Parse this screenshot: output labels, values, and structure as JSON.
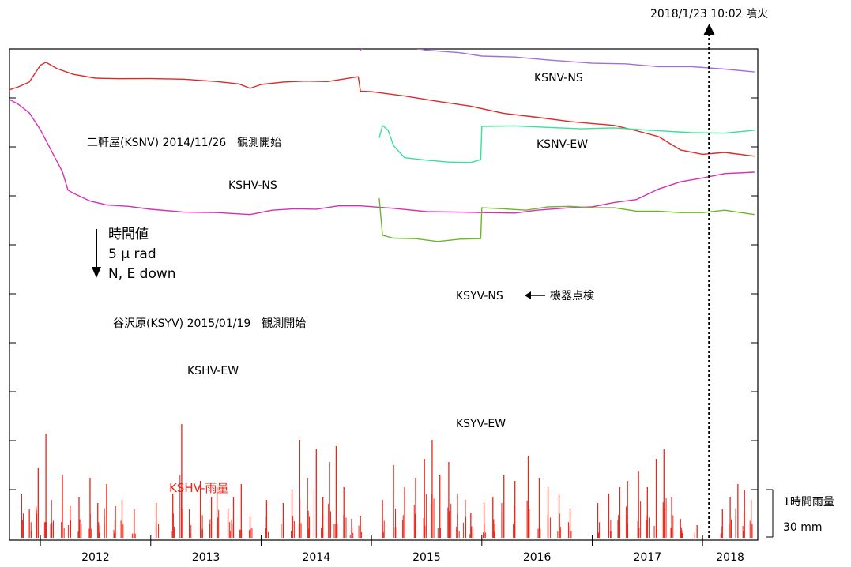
{
  "chart_data": {
    "type": "line",
    "x_unit": "year",
    "xlim": [
      2011.72,
      2018.5
    ],
    "x_tick_labels": [
      "2012",
      "2013",
      "2014",
      "2015",
      "2016",
      "2017",
      "2018"
    ],
    "year_boundaries": [
      2012,
      2013,
      2014,
      2015,
      2016,
      2017,
      2018
    ],
    "scale_bar": {
      "title": "時間値",
      "value": "5 μ rad",
      "direction": "N, E down"
    },
    "eruption": {
      "label": "2018/1/23 10:02 噴火",
      "x": 2018.06
    },
    "annotations": {
      "ksnv_start": "二軒屋(KSNV) 2014/11/26　観測開始",
      "ksyv_start": "谷沢原(KSYV) 2015/01/19　観測開始",
      "maintenance": "機器点検"
    },
    "rain_axis": {
      "title": "1時間雨量",
      "scale": "30 mm"
    },
    "series": [
      {
        "name": "KSNV-NS",
        "color": "#e060e0",
        "x": [
          2014.9,
          2015.0,
          2015.2,
          2015.5,
          2015.8,
          2016.0,
          2016.3,
          2016.6,
          2016.9,
          2017.2,
          2017.5,
          2017.8,
          2018.1,
          2018.47
        ],
        "y": [
          -0.8,
          1.2,
          3.6,
          6.0,
          7.6,
          8.6,
          9.8,
          10.7,
          11.5,
          12.1,
          12.7,
          13.3,
          14.1,
          15.4
        ]
      },
      {
        "name": "KSNV-EW",
        "color": "#a070d8",
        "x": [
          2014.9,
          2015.2,
          2015.5,
          2015.8,
          2016.0,
          2016.3,
          2016.6,
          2017.0,
          2017.3,
          2017.6,
          2017.9,
          2018.2,
          2018.47
        ],
        "y": [
          2.2,
          0.6,
          -0.4,
          -1.2,
          -1.7,
          -2.2,
          -2.6,
          -3.1,
          -3.5,
          -3.9,
          -4.2,
          -4.5,
          -4.9
        ]
      },
      {
        "name": "KSHV-NS",
        "color": "#e02828",
        "x": [
          2011.72,
          2011.8,
          2011.9,
          2012.0,
          2012.05,
          2012.15,
          2012.3,
          2012.5,
          2012.7,
          2013.0,
          2013.3,
          2013.6,
          2013.8,
          2013.9,
          2014.0,
          2014.2,
          2014.4,
          2014.6,
          2014.88,
          2014.9,
          2015.0,
          2015.3,
          2015.6,
          2015.9,
          2016.2,
          2016.5,
          2016.8,
          2017.0,
          2017.2,
          2017.4,
          2017.6,
          2017.8,
          2018.0,
          2018.2,
          2018.47
        ],
        "y": [
          -9.0,
          -8.2,
          -7.0,
          -3.8,
          -3.0,
          -4.6,
          -5.6,
          -6.2,
          -6.6,
          -6.4,
          -6.8,
          -7.1,
          -7.4,
          -8.6,
          -7.6,
          -7.4,
          -7.0,
          -6.9,
          -6.2,
          -9.0,
          -9.4,
          -10.1,
          -11.0,
          -12.3,
          -13.6,
          -14.7,
          -15.4,
          -15.6,
          -16.3,
          -17.2,
          -18.7,
          -21.3,
          -22.0,
          -21.9,
          -22.5
        ]
      },
      {
        "name": "KSYV-NS",
        "color": "#38e09a",
        "x": [
          2015.07,
          2015.1,
          2015.15,
          2015.2,
          2015.3,
          2015.5,
          2015.7,
          2015.9,
          2015.99,
          2016.0,
          2016.3,
          2016.6,
          2016.9,
          2017.2,
          2017.45,
          2017.6,
          2017.9,
          2018.2,
          2018.47
        ],
        "y": [
          -19.0,
          -16.2,
          -17.0,
          -20.5,
          -22.8,
          -23.6,
          -23.8,
          -23.7,
          -23.4,
          -16.3,
          -16.5,
          -16.6,
          -16.7,
          -16.8,
          -17.0,
          -17.5,
          -17.7,
          -17.6,
          -17.3
        ]
      },
      {
        "name": "KSHV-EW",
        "color": "#d82fb0",
        "x": [
          2011.72,
          2011.8,
          2011.9,
          2012.0,
          2012.1,
          2012.2,
          2012.25,
          2012.3,
          2012.45,
          2012.6,
          2012.8,
          2013.0,
          2013.3,
          2013.6,
          2013.9,
          2014.1,
          2014.3,
          2014.5,
          2014.7,
          2014.9,
          2015.2,
          2015.5,
          2015.8,
          2016.0,
          2016.3,
          2016.5,
          2016.8,
          2017.0,
          2017.2,
          2017.4,
          2017.6,
          2017.8,
          2018.0,
          2018.2,
          2018.47
        ],
        "y": [
          -11.0,
          -11.8,
          -13.4,
          -17.2,
          -21.4,
          -26.0,
          -29.6,
          -30.1,
          -32.0,
          -32.6,
          -33.2,
          -33.6,
          -34.0,
          -34.4,
          -34.6,
          -34.0,
          -33.5,
          -33.4,
          -33.0,
          -32.8,
          -33.6,
          -34.1,
          -34.0,
          -34.4,
          -34.3,
          -34.0,
          -33.3,
          -32.9,
          -32.3,
          -31.5,
          -29.6,
          -27.9,
          -26.9,
          -26.3,
          -25.8
        ]
      },
      {
        "name": "KSYV-EW",
        "color": "#6cb62a",
        "x": [
          2015.07,
          2015.1,
          2015.2,
          2015.4,
          2015.6,
          2015.8,
          2015.99,
          2016.0,
          2016.2,
          2016.4,
          2016.6,
          2016.8,
          2017.0,
          2017.2,
          2017.4,
          2017.6,
          2017.8,
          2018.0,
          2018.2,
          2018.47
        ],
        "y": [
          -31.5,
          -39.0,
          -39.4,
          -39.8,
          -40.2,
          -40.0,
          -39.7,
          -33.1,
          -33.6,
          -33.7,
          -33.3,
          -33.0,
          -33.1,
          -33.4,
          -33.9,
          -34.2,
          -34.3,
          -34.1,
          -33.9,
          -34.6
        ]
      }
    ],
    "rainfall": {
      "name": "KSHV-雨量",
      "color": "#e8261a",
      "unit": "mm/h",
      "events": [
        {
          "x": 2011.83,
          "y": 14
        },
        {
          "x": 2011.9,
          "y": 9
        },
        {
          "x": 2011.98,
          "y": 22
        },
        {
          "x": 2012.05,
          "y": 33
        },
        {
          "x": 2012.1,
          "y": 12
        },
        {
          "x": 2012.2,
          "y": 20
        },
        {
          "x": 2012.27,
          "y": 10
        },
        {
          "x": 2012.35,
          "y": 13
        },
        {
          "x": 2012.45,
          "y": 19
        },
        {
          "x": 2012.52,
          "y": 11
        },
        {
          "x": 2012.6,
          "y": 17
        },
        {
          "x": 2012.68,
          "y": 10
        },
        {
          "x": 2012.74,
          "y": 12
        },
        {
          "x": 2012.85,
          "y": 9
        },
        {
          "x": 2013.05,
          "y": 11
        },
        {
          "x": 2013.2,
          "y": 14
        },
        {
          "x": 2013.28,
          "y": 36
        },
        {
          "x": 2013.35,
          "y": 9
        },
        {
          "x": 2013.45,
          "y": 18
        },
        {
          "x": 2013.55,
          "y": 13
        },
        {
          "x": 2013.6,
          "y": 16
        },
        {
          "x": 2013.7,
          "y": 9
        },
        {
          "x": 2013.75,
          "y": 13
        },
        {
          "x": 2013.82,
          "y": 17
        },
        {
          "x": 2013.9,
          "y": 7
        },
        {
          "x": 2014.05,
          "y": 12
        },
        {
          "x": 2014.2,
          "y": 11
        },
        {
          "x": 2014.28,
          "y": 15
        },
        {
          "x": 2014.35,
          "y": 31
        },
        {
          "x": 2014.42,
          "y": 19
        },
        {
          "x": 2014.5,
          "y": 28
        },
        {
          "x": 2014.56,
          "y": 13
        },
        {
          "x": 2014.62,
          "y": 24
        },
        {
          "x": 2014.68,
          "y": 29
        },
        {
          "x": 2014.75,
          "y": 16
        },
        {
          "x": 2014.82,
          "y": 6
        },
        {
          "x": 2014.9,
          "y": 7
        },
        {
          "x": 2015.1,
          "y": 12
        },
        {
          "x": 2015.2,
          "y": 23
        },
        {
          "x": 2015.3,
          "y": 16
        },
        {
          "x": 2015.4,
          "y": 19
        },
        {
          "x": 2015.48,
          "y": 25
        },
        {
          "x": 2015.55,
          "y": 31
        },
        {
          "x": 2015.62,
          "y": 20
        },
        {
          "x": 2015.7,
          "y": 24
        },
        {
          "x": 2015.78,
          "y": 14
        },
        {
          "x": 2015.85,
          "y": 12
        },
        {
          "x": 2015.9,
          "y": 8
        },
        {
          "x": 2016.02,
          "y": 11
        },
        {
          "x": 2016.1,
          "y": 13
        },
        {
          "x": 2016.2,
          "y": 20
        },
        {
          "x": 2016.3,
          "y": 18
        },
        {
          "x": 2016.42,
          "y": 26
        },
        {
          "x": 2016.52,
          "y": 19
        },
        {
          "x": 2016.6,
          "y": 16
        },
        {
          "x": 2016.7,
          "y": 14
        },
        {
          "x": 2016.8,
          "y": 9
        },
        {
          "x": 2017.05,
          "y": 11
        },
        {
          "x": 2017.15,
          "y": 14
        },
        {
          "x": 2017.25,
          "y": 16
        },
        {
          "x": 2017.32,
          "y": 18
        },
        {
          "x": 2017.42,
          "y": 21
        },
        {
          "x": 2017.5,
          "y": 16
        },
        {
          "x": 2017.58,
          "y": 25
        },
        {
          "x": 2017.65,
          "y": 28
        },
        {
          "x": 2017.72,
          "y": 13
        },
        {
          "x": 2017.8,
          "y": 6
        },
        {
          "x": 2017.95,
          "y": 4
        },
        {
          "x": 2018.18,
          "y": 9
        },
        {
          "x": 2018.25,
          "y": 13
        },
        {
          "x": 2018.32,
          "y": 17
        },
        {
          "x": 2018.38,
          "y": 15
        },
        {
          "x": 2018.44,
          "y": 12
        }
      ]
    }
  }
}
